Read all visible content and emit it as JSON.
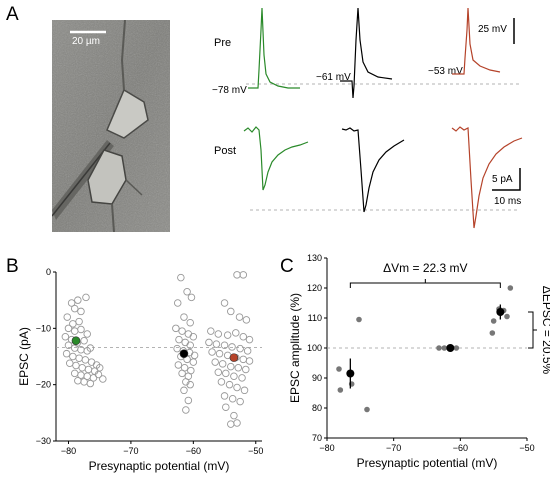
{
  "panel_labels": {
    "a": "A",
    "b": "B",
    "c": "C"
  },
  "panel_a": {
    "scale_bar_label": "20 µm",
    "row_labels": {
      "pre": "Pre",
      "post": "Post"
    },
    "potentials": [
      "−78 mV",
      "−61 mV",
      "−53 mV"
    ],
    "scale_bars": {
      "voltage": "25 mV",
      "current": "5 pA",
      "time": "10 ms"
    },
    "trace_colors": [
      "#2a8a2a",
      "#000000",
      "#b5432a"
    ]
  },
  "chart_data": [
    {
      "type": "scatter",
      "panel": "B",
      "xlabel": "Presynaptic potential (mV)",
      "ylabel": "EPSC (pA)",
      "xlim": [
        -82,
        -49
      ],
      "ylim": [
        -30,
        0
      ],
      "xticks": [
        -80,
        -70,
        -60,
        -50
      ],
      "yticks": [
        0,
        -10,
        -20,
        -30
      ],
      "xtick_labels": [
        "−80",
        "−70",
        "−60",
        "−50"
      ],
      "ytick_labels": [
        "0",
        "−10",
        "−20",
        "−30"
      ],
      "reference_line": -13.4,
      "series": [
        {
          "marker": "open-circle",
          "color": "#999999",
          "points": [
            [
              -79.5,
              -5.5
            ],
            [
              -78.5,
              -5
            ],
            [
              -79,
              -6.5
            ],
            [
              -78,
              -7
            ],
            [
              -77.2,
              -4.5
            ],
            [
              -80.2,
              -8
            ],
            [
              -79.3,
              -9.2
            ],
            [
              -78.3,
              -8.8
            ],
            [
              -80,
              -10
            ],
            [
              -79,
              -10.5
            ],
            [
              -78,
              -10.2
            ],
            [
              -77,
              -11
            ],
            [
              -80.5,
              -11.5
            ],
            [
              -79.5,
              -12
            ],
            [
              -78.6,
              -12.6
            ],
            [
              -77.5,
              -12.2
            ],
            [
              -80,
              -13
            ],
            [
              -79,
              -13.5
            ],
            [
              -78,
              -13.8
            ],
            [
              -77,
              -14
            ],
            [
              -76.5,
              -13.5
            ],
            [
              -80.3,
              -14.5
            ],
            [
              -79.3,
              -15
            ],
            [
              -78.3,
              -15.3
            ],
            [
              -77.3,
              -15.6
            ],
            [
              -76.3,
              -16
            ],
            [
              -75.5,
              -16.5
            ],
            [
              -79.8,
              -16.2
            ],
            [
              -78.8,
              -16.6
            ],
            [
              -77.8,
              -17
            ],
            [
              -76.8,
              -17.3
            ],
            [
              -75.8,
              -17.6
            ],
            [
              -75,
              -17
            ],
            [
              -79,
              -18
            ],
            [
              -78,
              -18.3
            ],
            [
              -77,
              -18.5
            ],
            [
              -76,
              -18.8
            ],
            [
              -75.2,
              -18.2
            ],
            [
              -74.5,
              -19
            ],
            [
              -78.5,
              -19.3
            ],
            [
              -77.5,
              -19.5
            ],
            [
              -76.5,
              -19.8
            ],
            [
              -62,
              -1
            ],
            [
              -61,
              -3.5
            ],
            [
              -60.3,
              -4.5
            ],
            [
              -62.5,
              -5.5
            ],
            [
              -61.5,
              -8
            ],
            [
              -60.5,
              -9
            ],
            [
              -62.8,
              -10
            ],
            [
              -61.8,
              -10.5
            ],
            [
              -60.8,
              -11
            ],
            [
              -60,
              -11.5
            ],
            [
              -62.3,
              -12
            ],
            [
              -61.3,
              -12.5
            ],
            [
              -60.5,
              -13
            ],
            [
              -62.6,
              -13.6
            ],
            [
              -61.6,
              -14
            ],
            [
              -60.6,
              -14.3
            ],
            [
              -59.8,
              -14.8
            ],
            [
              -62,
              -15
            ],
            [
              -61,
              -15.5
            ],
            [
              -60,
              -16
            ],
            [
              -62.4,
              -16.5
            ],
            [
              -61.4,
              -17
            ],
            [
              -60.4,
              -17.5
            ],
            [
              -61.8,
              -18
            ],
            [
              -60.8,
              -18.5
            ],
            [
              -61.2,
              -19.5
            ],
            [
              -60.5,
              -20
            ],
            [
              -61.5,
              -21
            ],
            [
              -60.8,
              -22.8
            ],
            [
              -61.2,
              -24.5
            ],
            [
              -53,
              -0.5
            ],
            [
              -52,
              -0.5
            ],
            [
              -55,
              -5.5
            ],
            [
              -54,
              -7
            ],
            [
              -52.6,
              -8
            ],
            [
              -51.5,
              -8.5
            ],
            [
              -57.2,
              -10.5
            ],
            [
              -56,
              -11
            ],
            [
              -54.5,
              -11.2
            ],
            [
              -53.2,
              -10.8
            ],
            [
              -52,
              -11.5
            ],
            [
              -51,
              -12
            ],
            [
              -57.5,
              -12.5
            ],
            [
              -56.3,
              -12.8
            ],
            [
              -55,
              -13
            ],
            [
              -53.8,
              -13.3
            ],
            [
              -52.5,
              -13.6
            ],
            [
              -51.3,
              -14
            ],
            [
              -57,
              -14.2
            ],
            [
              -55.8,
              -14.5
            ],
            [
              -54.5,
              -14.8
            ],
            [
              -53.2,
              -15.2
            ],
            [
              -52,
              -15.5
            ],
            [
              -51,
              -15.8
            ],
            [
              -56.5,
              -16
            ],
            [
              -55.3,
              -16.3
            ],
            [
              -54,
              -16.8
            ],
            [
              -52.8,
              -17
            ],
            [
              -51.6,
              -17.3
            ],
            [
              -56,
              -17.8
            ],
            [
              -54.8,
              -18
            ],
            [
              -53.5,
              -18.5
            ],
            [
              -52.2,
              -18.8
            ],
            [
              -55.5,
              -19.5
            ],
            [
              -54.2,
              -20
            ],
            [
              -53,
              -20.5
            ],
            [
              -51.8,
              -21
            ],
            [
              -55,
              -22
            ],
            [
              -53.7,
              -22.5
            ],
            [
              -52.5,
              -23
            ],
            [
              -54.8,
              -24
            ],
            [
              -53.5,
              -25.5
            ],
            [
              -54,
              -27
            ],
            [
              -53,
              -26.8
            ]
          ]
        },
        {
          "marker": "filled-circle",
          "color": "#2a8a2a",
          "points": [
            [
              -78.8,
              -12.2
            ]
          ]
        },
        {
          "marker": "filled-circle",
          "color": "#000000",
          "points": [
            [
              -61.5,
              -14.5
            ]
          ]
        },
        {
          "marker": "filled-circle",
          "color": "#b5432a",
          "points": [
            [
              -53.5,
              -15.2
            ]
          ]
        }
      ]
    },
    {
      "type": "scatter",
      "panel": "C",
      "xlabel": "Presynaptic  potential (mV)",
      "ylabel": "EPSC amplitude (%)",
      "xlim": [
        -80,
        -50
      ],
      "ylim": [
        70,
        130
      ],
      "xticks": [
        -80,
        -70,
        -60,
        -50
      ],
      "yticks": [
        70,
        80,
        90,
        100,
        110,
        120,
        130
      ],
      "xtick_labels": [
        "−80",
        "−70",
        "−60",
        "−50"
      ],
      "ytick_labels": [
        "70",
        "80",
        "90",
        "100",
        "110",
        "120",
        "130"
      ],
      "reference_line": 100,
      "annotations": {
        "delta_vm": "ΔVm = 22.3 mV",
        "delta_epsc": "ΔEPSC = 20.5%"
      },
      "series": [
        {
          "marker": "filled-circle",
          "color": "#777777",
          "points": [
            [
              -78.2,
              93
            ],
            [
              -78,
              86
            ],
            [
              -75.2,
              109.5
            ],
            [
              -76.3,
              88
            ],
            [
              -74,
              79.5
            ],
            [
              -63.2,
              100
            ],
            [
              -62.4,
              100
            ],
            [
              -61.5,
              100
            ],
            [
              -60.6,
              100
            ],
            [
              -55.2,
              105
            ],
            [
              -55,
              109
            ],
            [
              -54.2,
              113
            ],
            [
              -53.5,
              112.5
            ],
            [
              -53,
              110.5
            ],
            [
              -52.5,
              120
            ]
          ]
        },
        {
          "marker": "mean-errorbar",
          "color": "#000000",
          "points": [
            [
              -76.5,
              91.5,
              5
            ],
            [
              -61.5,
              100,
              0.6
            ],
            [
              -54,
              112,
              2.5
            ]
          ]
        }
      ]
    }
  ]
}
